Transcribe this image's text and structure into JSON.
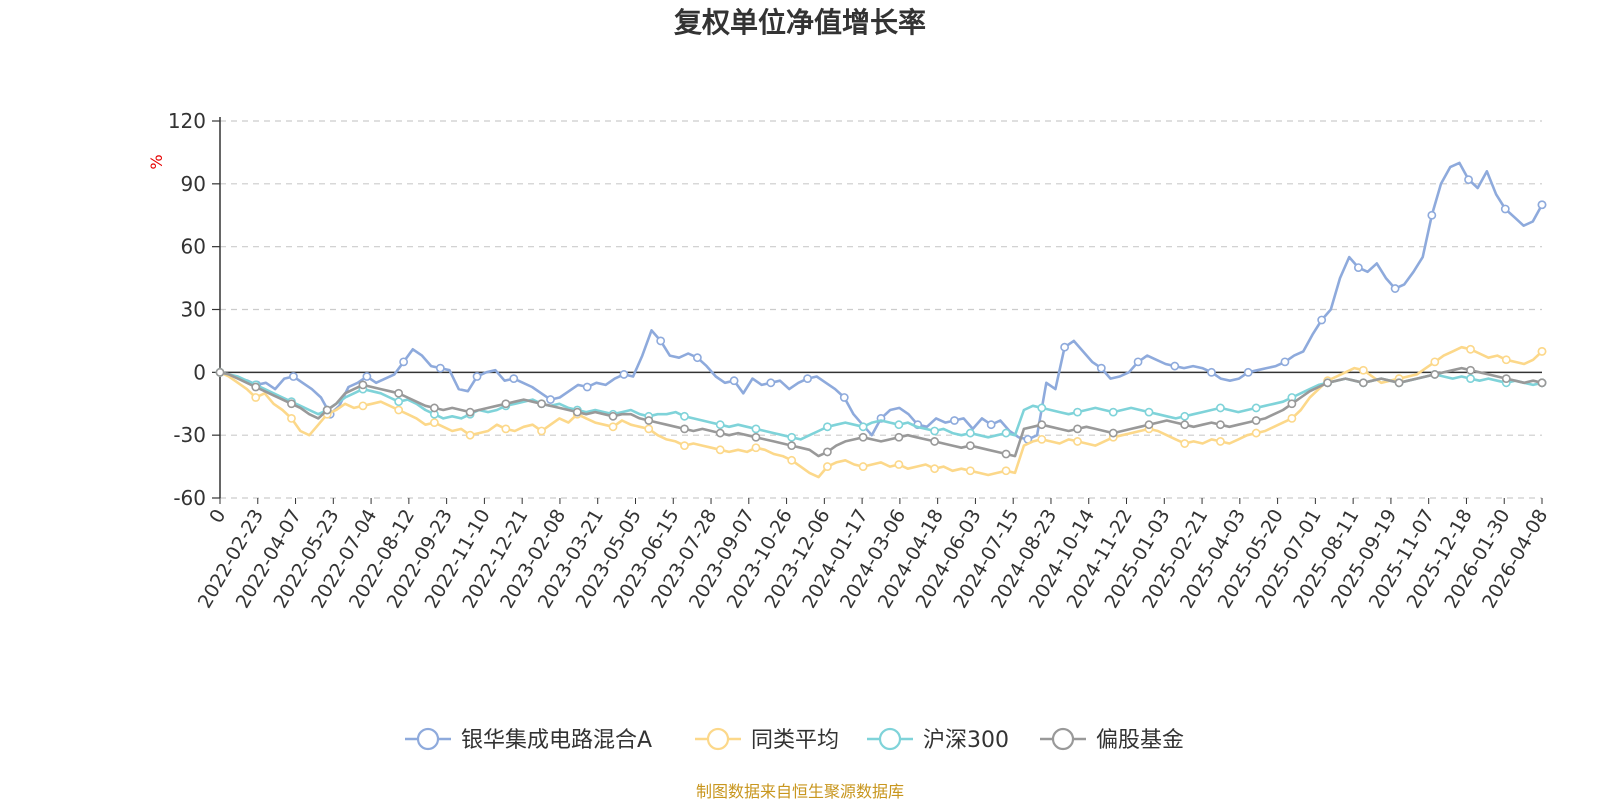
{
  "chart_data": {
    "type": "line",
    "title": "复权单位净值增长率",
    "ylabel": "%",
    "ylim": [
      -60,
      120
    ],
    "y_ticks": [
      120,
      90,
      60,
      30,
      0,
      -30,
      -60
    ],
    "grid": "horizontal-dashed",
    "legend_position": "bottom-center",
    "x_labels": [
      "0",
      "2022-02-23",
      "2022-04-07",
      "2022-05-23",
      "2022-07-04",
      "2022-08-12",
      "2022-09-23",
      "2022-11-10",
      "2022-12-21",
      "2023-02-08",
      "2023-03-21",
      "2023-05-05",
      "2023-06-15",
      "2023-07-28",
      "2023-09-07",
      "2023-10-26",
      "2023-12-06",
      "2024-01-17",
      "2024-03-06",
      "2024-04-18",
      "2024-06-03",
      "2024-07-15",
      "2024-08-23",
      "2024-10-14",
      "2024-11-22",
      "2025-01-03",
      "2025-02-21",
      "2025-04-03",
      "2025-05-20",
      "2025-07-01",
      "2025-08-11",
      "2025-09-19",
      "2025-11-07",
      "2025-12-18",
      "2026-01-30",
      "2026-04-08"
    ],
    "series": [
      {
        "name": "银华集成电路混合A",
        "color": "#8eaadc",
        "values": [
          0,
          -1,
          -3,
          -4,
          -6,
          -5,
          -8,
          -3,
          -2,
          -5,
          -8,
          -12,
          -20,
          -16,
          -7,
          -5,
          -2,
          -5,
          -3,
          -1,
          5,
          11,
          8,
          3,
          2,
          1,
          -8,
          -9,
          -2,
          0,
          1,
          -4,
          -3,
          -5,
          -7,
          -10,
          -13,
          -12,
          -9,
          -6,
          -7,
          -5,
          -6,
          -3,
          -1,
          -2,
          8,
          20,
          15,
          8,
          7,
          9,
          7,
          3,
          -2,
          -5,
          -4,
          -10,
          -3,
          -6,
          -5,
          -4,
          -8,
          -5,
          -3,
          -2,
          -5,
          -8,
          -12,
          -20,
          -25,
          -30,
          -22,
          -18,
          -17,
          -20,
          -25,
          -26,
          -22,
          -24,
          -23,
          -22,
          -27,
          -22,
          -25,
          -23,
          -28,
          -31,
          -32,
          -30,
          -5,
          -8,
          12,
          15,
          10,
          5,
          2,
          -3,
          -2,
          0,
          5,
          8,
          6,
          4,
          3,
          2,
          3,
          2,
          0,
          -3,
          -4,
          -3,
          0,
          1,
          2,
          3,
          5,
          8,
          10,
          18,
          25,
          30,
          45,
          55,
          50,
          48,
          52,
          45,
          40,
          42,
          48,
          55,
          75,
          90,
          98,
          100,
          92,
          88,
          96,
          85,
          78,
          74,
          70,
          72,
          80
        ]
      },
      {
        "name": "同类平均",
        "color": "#fcd88a",
        "values": [
          0,
          -2,
          -5,
          -8,
          -12,
          -10,
          -15,
          -18,
          -22,
          -28,
          -30,
          -25,
          -20,
          -18,
          -15,
          -17,
          -16,
          -15,
          -14,
          -16,
          -18,
          -20,
          -22,
          -25,
          -24,
          -26,
          -28,
          -27,
          -30,
          -29,
          -28,
          -25,
          -27,
          -28,
          -26,
          -25,
          -28,
          -25,
          -22,
          -24,
          -20,
          -22,
          -24,
          -25,
          -26,
          -23,
          -25,
          -26,
          -27,
          -30,
          -32,
          -33,
          -35,
          -34,
          -35,
          -36,
          -37,
          -38,
          -37,
          -38,
          -36,
          -37,
          -39,
          -40,
          -42,
          -45,
          -48,
          -50,
          -45,
          -43,
          -42,
          -44,
          -45,
          -44,
          -43,
          -45,
          -44,
          -46,
          -45,
          -44,
          -46,
          -45,
          -47,
          -46,
          -47,
          -48,
          -49,
          -48,
          -47,
          -48,
          -35,
          -33,
          -32,
          -33,
          -34,
          -32,
          -33,
          -34,
          -35,
          -33,
          -31,
          -30,
          -29,
          -28,
          -27,
          -28,
          -30,
          -32,
          -34,
          -33,
          -34,
          -32,
          -33,
          -34,
          -32,
          -30,
          -29,
          -28,
          -26,
          -24,
          -22,
          -18,
          -12,
          -8,
          -4,
          -2,
          0,
          2,
          1,
          -2,
          -5,
          -4,
          -3,
          -2,
          -1,
          2,
          5,
          8,
          10,
          12,
          11,
          9,
          7,
          8,
          6,
          5,
          4,
          6,
          10
        ]
      },
      {
        "name": "沪深300",
        "color": "#7fd3d9",
        "values": [
          0,
          -1,
          -2,
          -4,
          -6,
          -8,
          -10,
          -12,
          -14,
          -16,
          -18,
          -20,
          -18,
          -15,
          -12,
          -10,
          -8,
          -9,
          -10,
          -12,
          -14,
          -13,
          -15,
          -18,
          -20,
          -22,
          -21,
          -22,
          -20,
          -18,
          -19,
          -18,
          -16,
          -15,
          -14,
          -13,
          -15,
          -16,
          -15,
          -17,
          -18,
          -19,
          -18,
          -19,
          -20,
          -19,
          -18,
          -20,
          -21,
          -20,
          -20,
          -19,
          -21,
          -22,
          -23,
          -24,
          -25,
          -26,
          -25,
          -26,
          -27,
          -28,
          -29,
          -30,
          -31,
          -32,
          -30,
          -28,
          -26,
          -25,
          -24,
          -25,
          -26,
          -24,
          -23,
          -24,
          -25,
          -24,
          -26,
          -27,
          -28,
          -27,
          -29,
          -30,
          -29,
          -30,
          -31,
          -30,
          -29,
          -30,
          -18,
          -16,
          -17,
          -18,
          -19,
          -20,
          -19,
          -18,
          -17,
          -18,
          -19,
          -18,
          -17,
          -18,
          -19,
          -20,
          -21,
          -22,
          -21,
          -20,
          -19,
          -18,
          -17,
          -18,
          -19,
          -18,
          -17,
          -16,
          -15,
          -14,
          -12,
          -10,
          -8,
          -6,
          -5,
          -4,
          -3,
          -4,
          -5,
          -4,
          -3,
          -4,
          -5,
          -4,
          -3,
          -2,
          -1,
          -2,
          -3,
          -2,
          -3,
          -4,
          -3,
          -4,
          -5,
          -4,
          -5,
          -6,
          -5
        ]
      },
      {
        "name": "偏股基金",
        "color": "#999999",
        "values": [
          0,
          -1,
          -3,
          -5,
          -7,
          -9,
          -11,
          -13,
          -15,
          -17,
          -20,
          -22,
          -18,
          -15,
          -10,
          -8,
          -6,
          -7,
          -8,
          -9,
          -10,
          -12,
          -14,
          -16,
          -17,
          -18,
          -17,
          -18,
          -19,
          -18,
          -17,
          -16,
          -15,
          -14,
          -13,
          -14,
          -15,
          -16,
          -17,
          -18,
          -19,
          -20,
          -19,
          -20,
          -21,
          -20,
          -20,
          -22,
          -23,
          -24,
          -25,
          -26,
          -27,
          -28,
          -27,
          -28,
          -29,
          -30,
          -29,
          -30,
          -31,
          -32,
          -33,
          -34,
          -35,
          -36,
          -37,
          -40,
          -38,
          -35,
          -33,
          -32,
          -31,
          -32,
          -33,
          -32,
          -31,
          -30,
          -31,
          -32,
          -33,
          -34,
          -35,
          -36,
          -35,
          -36,
          -37,
          -38,
          -39,
          -40,
          -27,
          -26,
          -25,
          -26,
          -27,
          -28,
          -27,
          -26,
          -27,
          -28,
          -29,
          -28,
          -27,
          -26,
          -25,
          -24,
          -23,
          -24,
          -25,
          -26,
          -25,
          -24,
          -25,
          -26,
          -25,
          -24,
          -23,
          -22,
          -20,
          -18,
          -15,
          -12,
          -9,
          -7,
          -5,
          -4,
          -3,
          -4,
          -5,
          -4,
          -3,
          -4,
          -5,
          -4,
          -3,
          -2,
          -1,
          0,
          1,
          2,
          1,
          0,
          -1,
          -2,
          -3,
          -4,
          -5,
          -4,
          -5
        ]
      }
    ]
  },
  "footer": {
    "source": "制图数据来自恒生聚源数据库"
  }
}
